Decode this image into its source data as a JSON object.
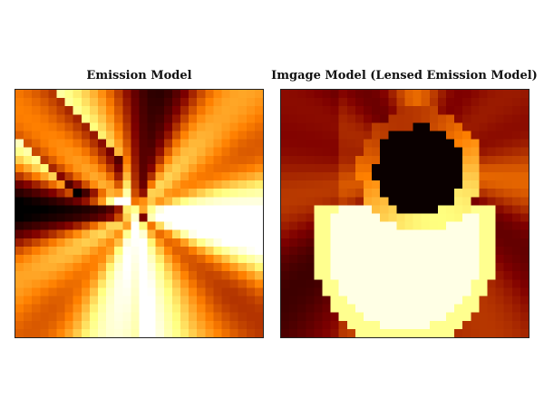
{
  "chart_data": [
    {
      "type": "heatmap",
      "title": "Emission Model",
      "colormap": "afmhot",
      "grid": false,
      "colors": {
        "dark": "#0a0000",
        "mid": "#c8500a",
        "bright": "#fff0a0",
        "white": "#fffce8"
      },
      "description_values": "radial spoke pattern centered on image, 30x30 pixel grid, normalized intensity 0-1"
    },
    {
      "type": "heatmap",
      "title": "Imgage Model (Lensed Emission Model)",
      "colormap": "afmhot",
      "grid": false,
      "colors": {
        "dark": "#000000",
        "mid": "#c8500a",
        "bright": "#fff0a0",
        "white": "#fffce8"
      },
      "description_values": "lensed ring with dark central shadow and bright lower crescent, 30x30 pixel grid, normalized intensity 0-1"
    }
  ]
}
